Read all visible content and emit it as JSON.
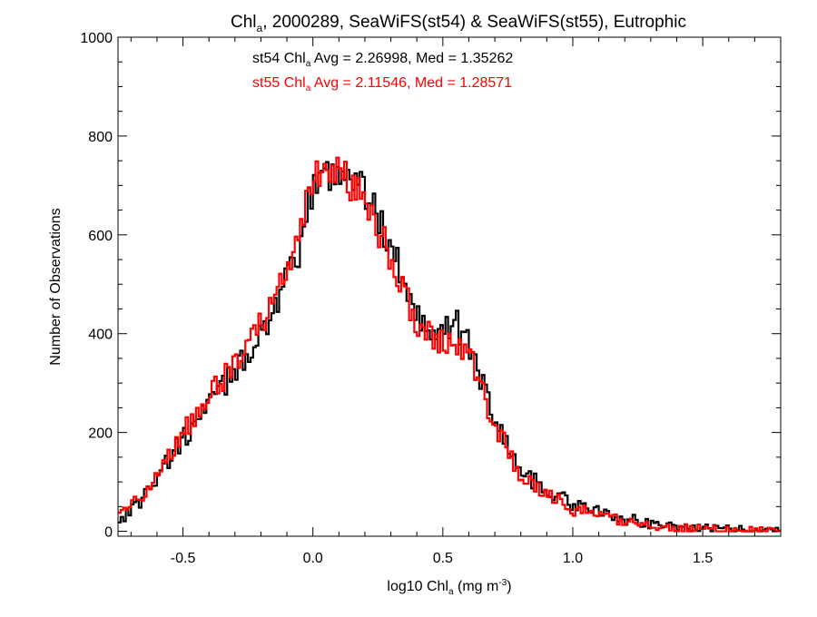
{
  "chart_data": {
    "type": "line",
    "step": true,
    "title": {
      "pre": "Chl",
      "sub": "a",
      "post": ", 2000289, SeaWiFS(st54) & SeaWiFS(st55), Eutrophic"
    },
    "xlabel": {
      "pre": "log10 Chl",
      "sub": "a",
      "post": " (mg m",
      "sup": "-3",
      "end": ")"
    },
    "ylabel": "Number of Observations",
    "xlim": [
      -0.75,
      1.8
    ],
    "ylim": [
      -10,
      1000
    ],
    "xticks": [
      -0.5,
      0.0,
      0.5,
      1.0,
      1.5
    ],
    "xtick_labels": [
      "-0.5",
      "0.0",
      "0.5",
      "1.0",
      "1.5"
    ],
    "yticks": [
      0,
      200,
      400,
      600,
      800,
      1000
    ],
    "ytick_labels": [
      "0",
      "200",
      "400",
      "600",
      "800",
      "1000"
    ],
    "grid": false,
    "annotations": [
      {
        "pre": "st54 Chl",
        "sub": "a",
        "post": " Avg = 2.26998, Med = 1.35262",
        "color": "#000000"
      },
      {
        "pre": "st55 Chl",
        "sub": "a",
        "post": " Avg = 2.11546, Med = 1.28571",
        "color": "#ff0000"
      }
    ],
    "series": [
      {
        "name": "st54",
        "color": "#000000",
        "x": [
          -0.75,
          -0.65,
          -0.55,
          -0.45,
          -0.35,
          -0.25,
          -0.15,
          -0.05,
          0.0,
          0.05,
          0.1,
          0.15,
          0.2,
          0.3,
          0.4,
          0.5,
          0.55,
          0.6,
          0.7,
          0.8,
          0.9,
          1.0,
          1.1,
          1.2,
          1.3,
          1.4,
          1.5,
          1.6,
          1.7,
          1.8
        ],
        "values": [
          20,
          70,
          150,
          220,
          290,
          360,
          450,
          560,
          700,
          720,
          735,
          720,
          690,
          580,
          440,
          400,
          420,
          380,
          230,
          120,
          85,
          55,
          38,
          25,
          16,
          10,
          6,
          4,
          2,
          1
        ]
      },
      {
        "name": "st55",
        "color": "#ff0000",
        "x": [
          -0.75,
          -0.65,
          -0.55,
          -0.45,
          -0.35,
          -0.25,
          -0.15,
          -0.05,
          0.0,
          0.05,
          0.1,
          0.15,
          0.2,
          0.3,
          0.4,
          0.5,
          0.55,
          0.6,
          0.7,
          0.8,
          0.9,
          1.0,
          1.1,
          1.2,
          1.3,
          1.4,
          1.5,
          1.6,
          1.7,
          1.8
        ],
        "values": [
          25,
          80,
          160,
          235,
          305,
          375,
          470,
          590,
          720,
          740,
          730,
          700,
          660,
          560,
          420,
          380,
          390,
          360,
          215,
          110,
          75,
          45,
          30,
          20,
          12,
          8,
          5,
          3,
          2,
          1
        ]
      }
    ]
  }
}
